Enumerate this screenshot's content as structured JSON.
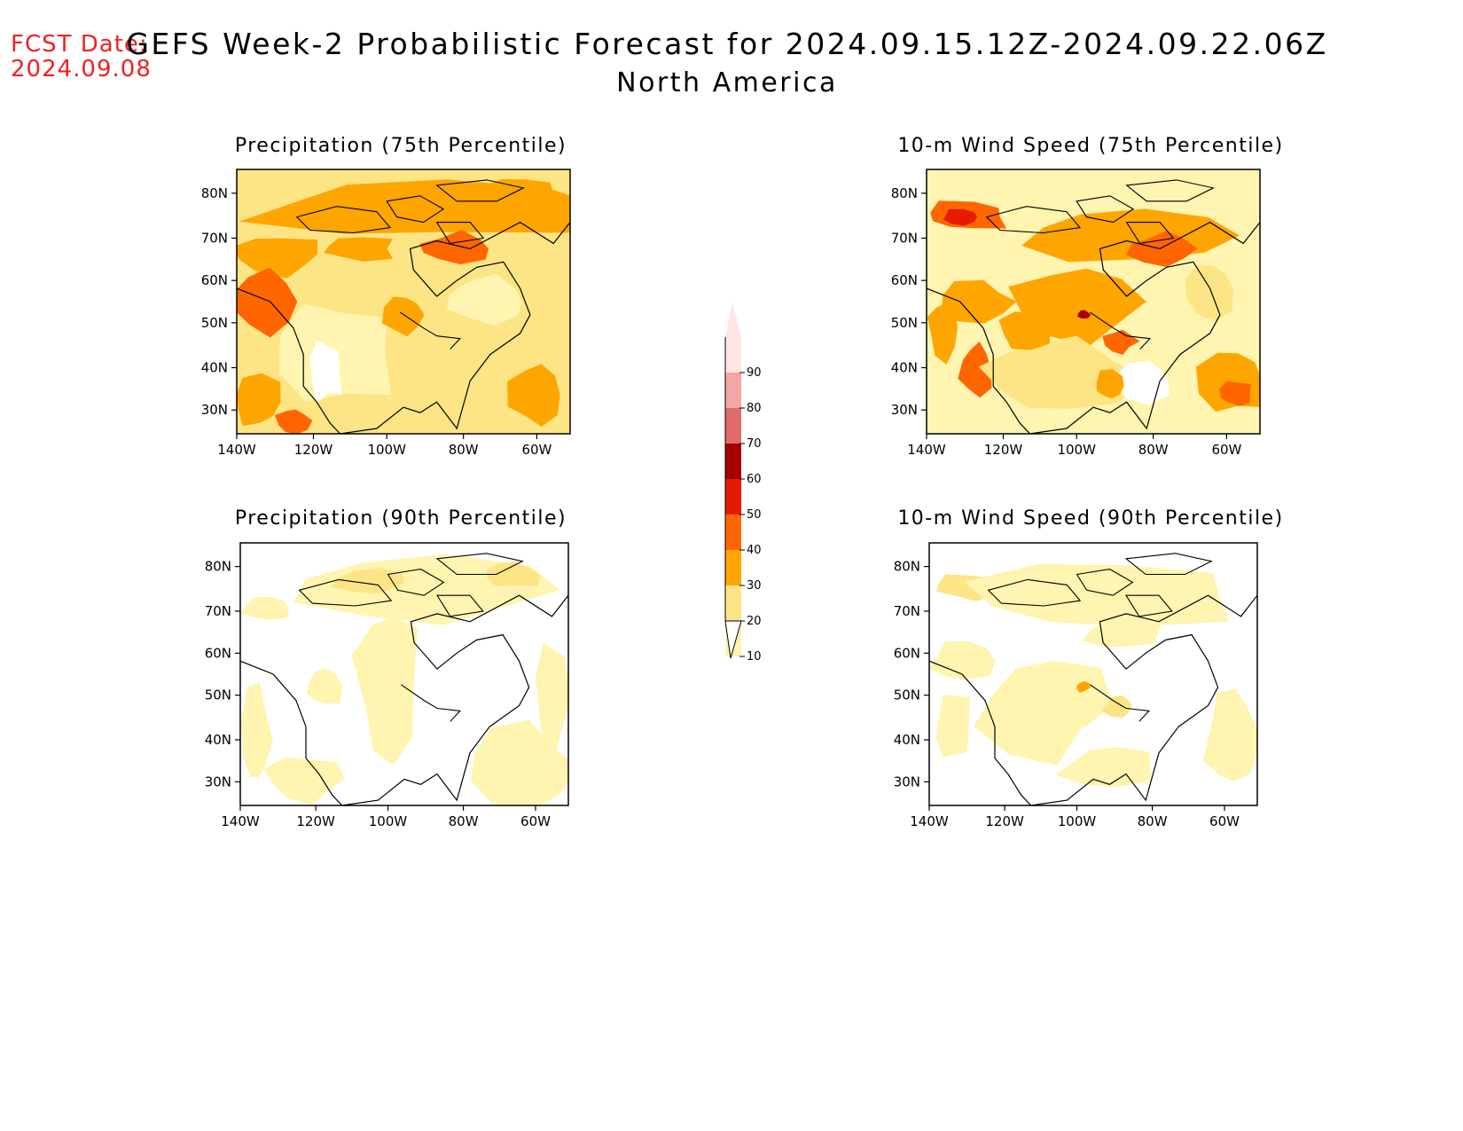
{
  "header": {
    "fcst_label": "FCST Date:",
    "fcst_date": "2024.09.08",
    "title": "GEFS Week-2 Probabilistic Forecast for 2024.09.15.12Z-2024.09.22.06Z",
    "subtitle": "North America"
  },
  "panels": [
    {
      "title": "Precipitation (75th Percentile)"
    },
    {
      "title": "10-m Wind Speed (75th Percentile)"
    },
    {
      "title": "Precipitation (90th Percentile)"
    },
    {
      "title": "10-m Wind Speed (90th Percentile)"
    }
  ],
  "axes": {
    "lat_labels": [
      "80N",
      "70N",
      "60N",
      "50N",
      "40N",
      "30N"
    ],
    "lon_labels": [
      "140W",
      "120W",
      "100W",
      "80W",
      "60W"
    ]
  },
  "colorbar": {
    "levels": [
      "10",
      "20",
      "30",
      "40",
      "50",
      "60",
      "70",
      "80",
      "90"
    ],
    "colors": [
      "#fff4b0",
      "#fde585",
      "#ffa500",
      "#ff6600",
      "#e51b00",
      "#a50000",
      "#e06b6b",
      "#f4a6a6",
      "#ffe5e5"
    ]
  }
}
